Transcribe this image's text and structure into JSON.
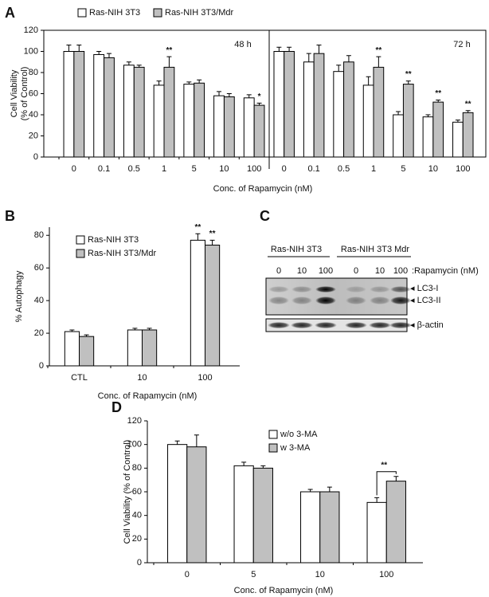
{
  "panel_labels": [
    "A",
    "B",
    "C",
    "D"
  ],
  "chart_data": [
    {
      "type": "bar",
      "annotation": "48 h",
      "ylabel": "Cell Viability\n(% of Control)",
      "xlabel": "Conc. of Rapamycin (nM)",
      "categories": [
        "0",
        "0.1",
        "0.5",
        "1",
        "5",
        "10",
        "100"
      ],
      "series": [
        {
          "name": "Ras-NIH 3T3",
          "color": "#ffffff",
          "values": [
            100,
            97,
            87,
            68,
            69,
            58,
            56
          ],
          "errors": [
            6,
            3,
            3,
            4,
            2,
            4,
            3
          ]
        },
        {
          "name": "Ras-NIH 3T3/Mdr",
          "color": "#c0c0c0",
          "values": [
            100,
            94,
            85,
            85,
            70,
            57,
            49
          ],
          "errors": [
            6,
            4,
            2,
            10,
            3,
            3,
            2
          ],
          "significance": [
            null,
            null,
            null,
            "**",
            null,
            null,
            "*"
          ]
        }
      ],
      "ylim": [
        0,
        120
      ],
      "yticks": [
        0,
        20,
        40,
        60,
        80,
        100,
        120
      ]
    },
    {
      "type": "bar",
      "annotation": "72 h",
      "categories": [
        "0",
        "0.1",
        "0.5",
        "1",
        "5",
        "10",
        "100"
      ],
      "series": [
        {
          "color": "#ffffff",
          "values": [
            100,
            90,
            81,
            68,
            40,
            38,
            33
          ],
          "errors": [
            4,
            8,
            6,
            8,
            3,
            2,
            2
          ]
        },
        {
          "color": "#c0c0c0",
          "values": [
            100,
            98,
            90,
            85,
            69,
            52,
            42
          ],
          "errors": [
            4,
            8,
            6,
            10,
            3,
            2,
            2
          ],
          "significance": [
            null,
            null,
            null,
            "**",
            "**",
            "**",
            "**"
          ]
        }
      ],
      "ylim": [
        0,
        120
      ]
    },
    {
      "type": "bar",
      "ylabel": "% Autophagy",
      "xlabel": "Conc. of Rapamycin (nM)",
      "categories": [
        "CTL",
        "10",
        "100"
      ],
      "series": [
        {
          "name": "Ras-NIH 3T3",
          "color": "#ffffff",
          "values": [
            21,
            22,
            77
          ],
          "errors": [
            1,
            1,
            4
          ],
          "significance": [
            null,
            null,
            "**"
          ]
        },
        {
          "name": "Ras-NIH 3T3/Mdr",
          "color": "#c0c0c0",
          "values": [
            18,
            22,
            74
          ],
          "errors": [
            1,
            1,
            3
          ],
          "significance": [
            null,
            null,
            "**"
          ]
        }
      ],
      "ylim": [
        0,
        85
      ],
      "yticks": [
        0,
        20,
        40,
        60,
        80
      ]
    },
    {
      "type": "bar",
      "ylabel": "Cell Viability (% of Control)",
      "xlabel": "Conc. of Rapamycin (nM)",
      "bracket": true,
      "categories": [
        "0",
        "5",
        "10",
        "100"
      ],
      "series": [
        {
          "name": "w/o 3-MA",
          "color": "#ffffff",
          "values": [
            100,
            82,
            60,
            51
          ],
          "errors": [
            3,
            3,
            2,
            4
          ]
        },
        {
          "name": "w 3-MA",
          "color": "#c0c0c0",
          "values": [
            98,
            80,
            60,
            69
          ],
          "errors": [
            10,
            2,
            4,
            4
          ],
          "significance": [
            null,
            null,
            null,
            "**"
          ]
        }
      ],
      "ylim": [
        0,
        120
      ],
      "yticks": [
        0,
        20,
        40,
        60,
        80,
        100,
        120
      ]
    }
  ],
  "blot": {
    "groups": [
      "Ras-NIH 3T3",
      "Ras-NIH 3T3 Mdr"
    ],
    "treatment": ":Rapamycin (nM)",
    "lanes": [
      "0",
      "10",
      "100",
      "0",
      "10",
      "100"
    ],
    "bands": [
      "LC3-I",
      "LC3-II",
      "β-actin"
    ]
  }
}
